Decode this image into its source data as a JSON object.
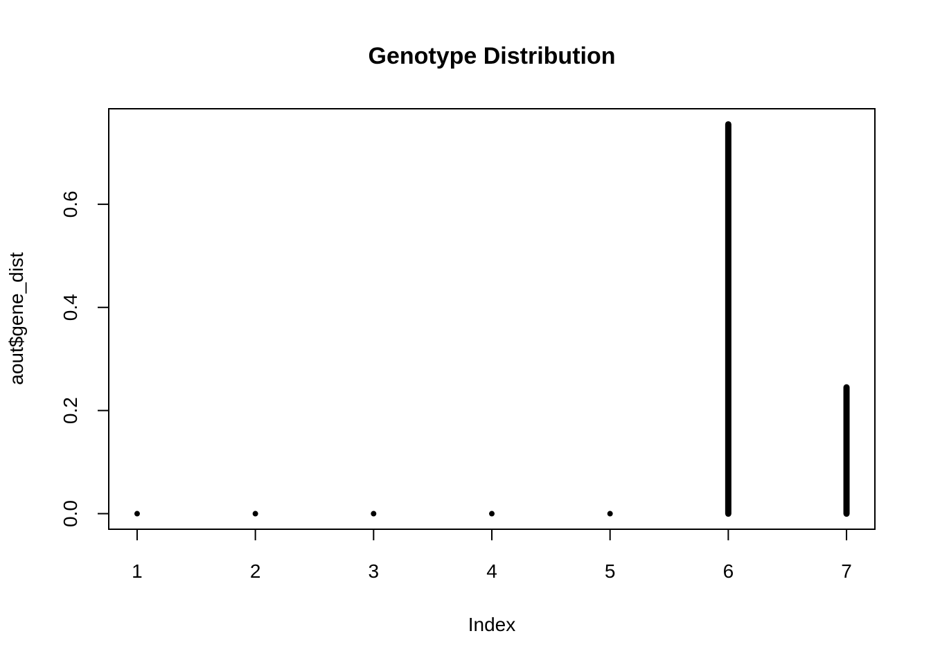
{
  "chart_data": {
    "type": "line",
    "title": "Genotype Distribution",
    "xlabel": "Index",
    "ylabel": "aout$gene_dist",
    "x": [
      1,
      2,
      3,
      4,
      5,
      6,
      7
    ],
    "series": [
      {
        "values": [
          0,
          0,
          0,
          0,
          0,
          0.755,
          0.245
        ]
      }
    ],
    "x_ticks": [
      "1",
      "2",
      "3",
      "4",
      "5",
      "6",
      "7"
    ],
    "y_ticks": [
      "0.0",
      "0.2",
      "0.4",
      "0.6"
    ],
    "xlim": [
      0.76,
      7.24
    ],
    "ylim": [
      -0.0302,
      0.7852
    ],
    "grid": false,
    "legend": "none",
    "color": "#000000"
  }
}
